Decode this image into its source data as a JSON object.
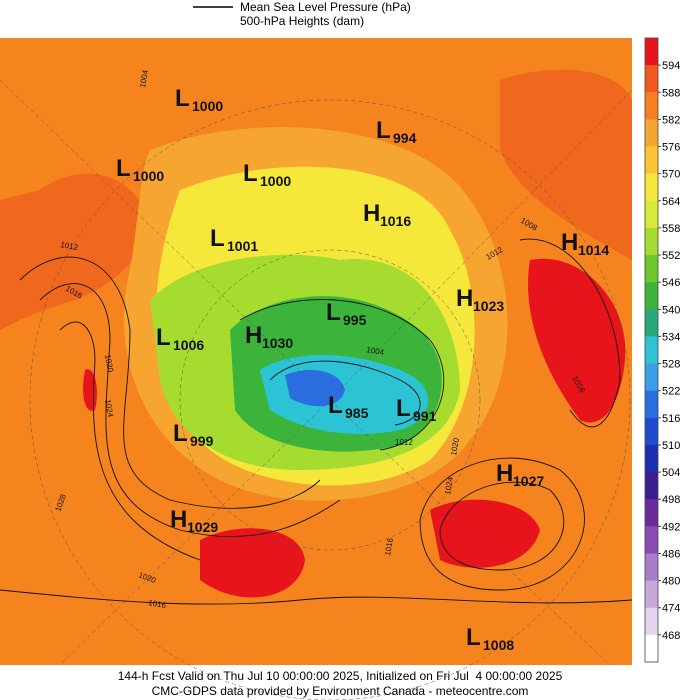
{
  "legend": {
    "items": [
      "Mean Sea Level Pressure (hPa)",
      "500-hPa Heights (dam)"
    ]
  },
  "colorbar": {
    "labels": [
      594,
      588,
      582,
      576,
      570,
      564,
      558,
      552,
      546,
      540,
      534,
      528,
      522,
      516,
      510,
      504,
      498,
      492,
      486,
      480,
      474,
      468
    ],
    "colors": [
      "#e8141c",
      "#f2581e",
      "#f57f22",
      "#f7a531",
      "#f9c534",
      "#f5e83a",
      "#d7ea3a",
      "#a6dc30",
      "#6cc82c",
      "#3cb43c",
      "#28a878",
      "#2cc4d4",
      "#3a9ee8",
      "#2a6ee0",
      "#1e4ad0",
      "#1a30b0",
      "#3a1e90",
      "#6a2a9c",
      "#8a4ab0",
      "#a87cc8",
      "#c6a8dc",
      "#e4d4ee",
      "#ffffff"
    ]
  },
  "centers": [
    {
      "letter": "L",
      "value": "1000"
    },
    {
      "letter": "L",
      "value": "994"
    },
    {
      "letter": "L",
      "value": "1000"
    },
    {
      "letter": "L",
      "value": "1000"
    },
    {
      "letter": "H",
      "value": "1016"
    },
    {
      "letter": "H",
      "value": "1014"
    },
    {
      "letter": "L",
      "value": "1001"
    },
    {
      "letter": "H",
      "value": "1023"
    },
    {
      "letter": "L",
      "value": "995"
    },
    {
      "letter": "L",
      "value": "1006"
    },
    {
      "letter": "H",
      "value": "1030"
    },
    {
      "letter": "L",
      "value": "985"
    },
    {
      "letter": "L",
      "value": "991"
    },
    {
      "letter": "L",
      "value": "999"
    },
    {
      "letter": "H",
      "value": "1027"
    },
    {
      "letter": "H",
      "value": "1029"
    },
    {
      "letter": "L",
      "value": "1008"
    }
  ],
  "contour_labels": [
    "1004",
    "1012",
    "1016",
    "1020",
    "1024",
    "1008",
    "1012",
    "1016",
    "1004",
    "1012",
    "1020",
    "1024",
    "1028",
    "1016",
    "1020",
    "1016"
  ],
  "footer": {
    "lines": [
      "144-h Fcst Valid on Thu Jul 10 00:00:00 2025, Initialized on Fri Jul  4 00:00:00 2025",
      "CMC-GDPS data provided by Environment Canada - meteocentre.com"
    ]
  }
}
